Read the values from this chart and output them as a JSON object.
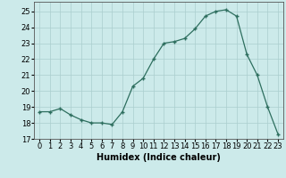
{
  "x": [
    0,
    1,
    2,
    3,
    4,
    5,
    6,
    7,
    8,
    9,
    10,
    11,
    12,
    13,
    14,
    15,
    16,
    17,
    18,
    19,
    20,
    21,
    22,
    23
  ],
  "y": [
    18.7,
    18.7,
    18.9,
    18.5,
    18.2,
    18.0,
    18.0,
    17.9,
    18.7,
    20.3,
    20.8,
    22.0,
    23.0,
    23.1,
    23.3,
    23.9,
    24.7,
    25.0,
    25.1,
    24.7,
    22.3,
    21.0,
    19.0,
    17.3
  ],
  "xlabel": "Humidex (Indice chaleur)",
  "xlim": [
    -0.5,
    23.5
  ],
  "ylim": [
    17,
    25.6
  ],
  "yticks": [
    17,
    18,
    19,
    20,
    21,
    22,
    23,
    24,
    25
  ],
  "xticks": [
    0,
    1,
    2,
    3,
    4,
    5,
    6,
    7,
    8,
    9,
    10,
    11,
    12,
    13,
    14,
    15,
    16,
    17,
    18,
    19,
    20,
    21,
    22,
    23
  ],
  "line_color": "#2d6e5e",
  "marker": "+",
  "bg_color": "#cceaea",
  "grid_color": "#aacece",
  "label_fontsize": 7,
  "tick_fontsize": 6
}
